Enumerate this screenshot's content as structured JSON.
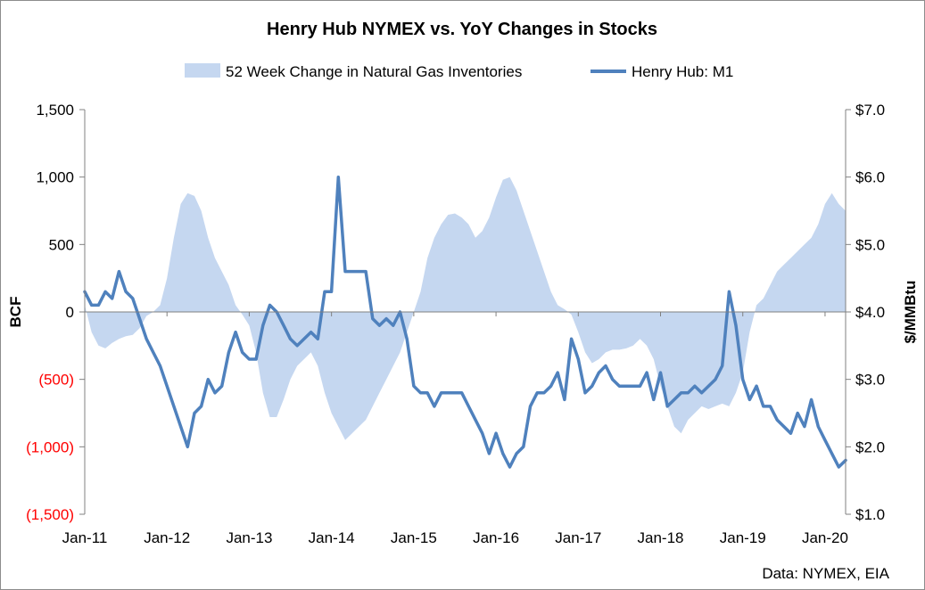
{
  "chart_data": {
    "type": "area+line",
    "title": "Henry Hub NYMEX vs. YoY Changes in Stocks",
    "source_note": "Data: NYMEX, EIA",
    "legend_position": "top",
    "grid": false,
    "colors": {
      "area": "#c5d7f0",
      "line": "#4f81bd",
      "negative_tick_label": "#ff0000"
    },
    "y_left": {
      "label": "BCF",
      "lim": [
        -1500,
        1500
      ],
      "ticks": [
        1500,
        1000,
        500,
        0,
        -500,
        -1000,
        -1500
      ],
      "tick_labels": [
        "1,500",
        "1,000",
        "500",
        "0",
        "(500)",
        "(1,000)",
        "(1,500)"
      ]
    },
    "y_right": {
      "label": "$/MMBtu",
      "lim": [
        1.0,
        7.0
      ],
      "ticks": [
        7,
        6,
        5,
        4,
        3,
        2,
        1
      ],
      "tick_labels": [
        "$7.0",
        "$6.0",
        "$5.0",
        "$4.0",
        "$3.0",
        "$2.0",
        "$1.0"
      ]
    },
    "x_axis": {
      "lim": [
        "2011-01",
        "2020-04"
      ],
      "ticks": [
        "2011-01",
        "2012-01",
        "2013-01",
        "2014-01",
        "2015-01",
        "2016-01",
        "2017-01",
        "2018-01",
        "2019-01",
        "2020-01"
      ],
      "tick_labels": [
        "Jan-11",
        "Jan-12",
        "Jan-13",
        "Jan-14",
        "Jan-15",
        "Jan-16",
        "Jan-17",
        "Jan-18",
        "Jan-19",
        "Jan-20"
      ]
    },
    "series": [
      {
        "name": "52 Week Change in Natural Gas Inventories",
        "type": "area",
        "axis": "left",
        "points": [
          [
            "2011-01",
            50
          ],
          [
            "2011-02",
            -150
          ],
          [
            "2011-03",
            -250
          ],
          [
            "2011-04",
            -270
          ],
          [
            "2011-05",
            -230
          ],
          [
            "2011-06",
            -200
          ],
          [
            "2011-07",
            -180
          ],
          [
            "2011-08",
            -170
          ],
          [
            "2011-09",
            -120
          ],
          [
            "2011-10",
            -30
          ],
          [
            "2011-11",
            0
          ],
          [
            "2011-12",
            50
          ],
          [
            "2012-01",
            250
          ],
          [
            "2012-02",
            550
          ],
          [
            "2012-03",
            800
          ],
          [
            "2012-04",
            880
          ],
          [
            "2012-05",
            860
          ],
          [
            "2012-06",
            750
          ],
          [
            "2012-07",
            550
          ],
          [
            "2012-08",
            400
          ],
          [
            "2012-09",
            300
          ],
          [
            "2012-10",
            200
          ],
          [
            "2012-11",
            50
          ],
          [
            "2012-12",
            -20
          ],
          [
            "2013-01",
            -100
          ],
          [
            "2013-02",
            -300
          ],
          [
            "2013-03",
            -600
          ],
          [
            "2013-04",
            -780
          ],
          [
            "2013-05",
            -780
          ],
          [
            "2013-06",
            -650
          ],
          [
            "2013-07",
            -500
          ],
          [
            "2013-08",
            -400
          ],
          [
            "2013-09",
            -350
          ],
          [
            "2013-10",
            -300
          ],
          [
            "2013-11",
            -400
          ],
          [
            "2013-12",
            -600
          ],
          [
            "2014-01",
            -750
          ],
          [
            "2014-02",
            -850
          ],
          [
            "2014-03",
            -950
          ],
          [
            "2014-04",
            -900
          ],
          [
            "2014-05",
            -850
          ],
          [
            "2014-06",
            -800
          ],
          [
            "2014-07",
            -700
          ],
          [
            "2014-08",
            -600
          ],
          [
            "2014-09",
            -500
          ],
          [
            "2014-10",
            -400
          ],
          [
            "2014-11",
            -300
          ],
          [
            "2014-12",
            -150
          ],
          [
            "2015-01",
            0
          ],
          [
            "2015-02",
            150
          ],
          [
            "2015-03",
            400
          ],
          [
            "2015-04",
            550
          ],
          [
            "2015-05",
            650
          ],
          [
            "2015-06",
            720
          ],
          [
            "2015-07",
            730
          ],
          [
            "2015-08",
            700
          ],
          [
            "2015-09",
            650
          ],
          [
            "2015-10",
            550
          ],
          [
            "2015-11",
            600
          ],
          [
            "2015-12",
            700
          ],
          [
            "2016-01",
            850
          ],
          [
            "2016-02",
            980
          ],
          [
            "2016-03",
            1000
          ],
          [
            "2016-04",
            900
          ],
          [
            "2016-05",
            750
          ],
          [
            "2016-06",
            600
          ],
          [
            "2016-07",
            450
          ],
          [
            "2016-08",
            300
          ],
          [
            "2016-09",
            150
          ],
          [
            "2016-10",
            50
          ],
          [
            "2016-11",
            20
          ],
          [
            "2016-12",
            -20
          ],
          [
            "2017-01",
            -150
          ],
          [
            "2017-02",
            -300
          ],
          [
            "2017-03",
            -380
          ],
          [
            "2017-04",
            -350
          ],
          [
            "2017-05",
            -300
          ],
          [
            "2017-06",
            -280
          ],
          [
            "2017-07",
            -280
          ],
          [
            "2017-08",
            -270
          ],
          [
            "2017-09",
            -250
          ],
          [
            "2017-10",
            -200
          ],
          [
            "2017-11",
            -250
          ],
          [
            "2017-12",
            -350
          ],
          [
            "2018-01",
            -550
          ],
          [
            "2018-02",
            -700
          ],
          [
            "2018-03",
            -850
          ],
          [
            "2018-04",
            -900
          ],
          [
            "2018-05",
            -800
          ],
          [
            "2018-06",
            -750
          ],
          [
            "2018-07",
            -700
          ],
          [
            "2018-08",
            -720
          ],
          [
            "2018-09",
            -700
          ],
          [
            "2018-10",
            -680
          ],
          [
            "2018-11",
            -700
          ],
          [
            "2018-12",
            -600
          ],
          [
            "2019-01",
            -450
          ],
          [
            "2019-02",
            -150
          ],
          [
            "2019-03",
            50
          ],
          [
            "2019-04",
            100
          ],
          [
            "2019-05",
            200
          ],
          [
            "2019-06",
            300
          ],
          [
            "2019-07",
            350
          ],
          [
            "2019-08",
            400
          ],
          [
            "2019-09",
            450
          ],
          [
            "2019-10",
            500
          ],
          [
            "2019-11",
            550
          ],
          [
            "2019-12",
            650
          ],
          [
            "2020-01",
            800
          ],
          [
            "2020-02",
            880
          ],
          [
            "2020-03",
            800
          ],
          [
            "2020-04",
            750
          ]
        ]
      },
      {
        "name": "Henry Hub: M1",
        "type": "line",
        "axis": "right",
        "points": [
          [
            "2011-01",
            4.3
          ],
          [
            "2011-02",
            4.1
          ],
          [
            "2011-03",
            4.1
          ],
          [
            "2011-04",
            4.3
          ],
          [
            "2011-05",
            4.2
          ],
          [
            "2011-06",
            4.6
          ],
          [
            "2011-07",
            4.3
          ],
          [
            "2011-08",
            4.2
          ],
          [
            "2011-09",
            3.9
          ],
          [
            "2011-10",
            3.6
          ],
          [
            "2011-11",
            3.4
          ],
          [
            "2011-12",
            3.2
          ],
          [
            "2012-01",
            2.9
          ],
          [
            "2012-02",
            2.6
          ],
          [
            "2012-03",
            2.3
          ],
          [
            "2012-04",
            2.0
          ],
          [
            "2012-05",
            2.5
          ],
          [
            "2012-06",
            2.6
          ],
          [
            "2012-07",
            3.0
          ],
          [
            "2012-08",
            2.8
          ],
          [
            "2012-09",
            2.9
          ],
          [
            "2012-10",
            3.4
          ],
          [
            "2012-11",
            3.7
          ],
          [
            "2012-12",
            3.4
          ],
          [
            "2013-01",
            3.3
          ],
          [
            "2013-02",
            3.3
          ],
          [
            "2013-03",
            3.8
          ],
          [
            "2013-04",
            4.1
          ],
          [
            "2013-05",
            4.0
          ],
          [
            "2013-06",
            3.8
          ],
          [
            "2013-07",
            3.6
          ],
          [
            "2013-08",
            3.5
          ],
          [
            "2013-09",
            3.6
          ],
          [
            "2013-10",
            3.7
          ],
          [
            "2013-11",
            3.6
          ],
          [
            "2013-12",
            4.3
          ],
          [
            "2014-01",
            4.3
          ],
          [
            "2014-02",
            6.0
          ],
          [
            "2014-03",
            4.6
          ],
          [
            "2014-04",
            4.6
          ],
          [
            "2014-05",
            4.6
          ],
          [
            "2014-06",
            4.6
          ],
          [
            "2014-07",
            3.9
          ],
          [
            "2014-08",
            3.8
          ],
          [
            "2014-09",
            3.9
          ],
          [
            "2014-10",
            3.8
          ],
          [
            "2014-11",
            4.0
          ],
          [
            "2014-12",
            3.6
          ],
          [
            "2015-01",
            2.9
          ],
          [
            "2015-02",
            2.8
          ],
          [
            "2015-03",
            2.8
          ],
          [
            "2015-04",
            2.6
          ],
          [
            "2015-05",
            2.8
          ],
          [
            "2015-06",
            2.8
          ],
          [
            "2015-07",
            2.8
          ],
          [
            "2015-08",
            2.8
          ],
          [
            "2015-09",
            2.6
          ],
          [
            "2015-10",
            2.4
          ],
          [
            "2015-11",
            2.2
          ],
          [
            "2015-12",
            1.9
          ],
          [
            "2016-01",
            2.2
          ],
          [
            "2016-02",
            1.9
          ],
          [
            "2016-03",
            1.7
          ],
          [
            "2016-04",
            1.9
          ],
          [
            "2016-05",
            2.0
          ],
          [
            "2016-06",
            2.6
          ],
          [
            "2016-07",
            2.8
          ],
          [
            "2016-08",
            2.8
          ],
          [
            "2016-09",
            2.9
          ],
          [
            "2016-10",
            3.1
          ],
          [
            "2016-11",
            2.7
          ],
          [
            "2016-12",
            3.6
          ],
          [
            "2017-01",
            3.3
          ],
          [
            "2017-02",
            2.8
          ],
          [
            "2017-03",
            2.9
          ],
          [
            "2017-04",
            3.1
          ],
          [
            "2017-05",
            3.2
          ],
          [
            "2017-06",
            3.0
          ],
          [
            "2017-07",
            2.9
          ],
          [
            "2017-08",
            2.9
          ],
          [
            "2017-09",
            2.9
          ],
          [
            "2017-10",
            2.9
          ],
          [
            "2017-11",
            3.1
          ],
          [
            "2017-12",
            2.7
          ],
          [
            "2018-01",
            3.1
          ],
          [
            "2018-02",
            2.6
          ],
          [
            "2018-03",
            2.7
          ],
          [
            "2018-04",
            2.8
          ],
          [
            "2018-05",
            2.8
          ],
          [
            "2018-06",
            2.9
          ],
          [
            "2018-07",
            2.8
          ],
          [
            "2018-08",
            2.9
          ],
          [
            "2018-09",
            3.0
          ],
          [
            "2018-10",
            3.2
          ],
          [
            "2018-11",
            4.3
          ],
          [
            "2018-12",
            3.8
          ],
          [
            "2019-01",
            3.0
          ],
          [
            "2019-02",
            2.7
          ],
          [
            "2019-03",
            2.9
          ],
          [
            "2019-04",
            2.6
          ],
          [
            "2019-05",
            2.6
          ],
          [
            "2019-06",
            2.4
          ],
          [
            "2019-07",
            2.3
          ],
          [
            "2019-08",
            2.2
          ],
          [
            "2019-09",
            2.5
          ],
          [
            "2019-10",
            2.3
          ],
          [
            "2019-11",
            2.7
          ],
          [
            "2019-12",
            2.3
          ],
          [
            "2020-01",
            2.1
          ],
          [
            "2020-02",
            1.9
          ],
          [
            "2020-03",
            1.7
          ],
          [
            "2020-04",
            1.8
          ]
        ]
      }
    ]
  }
}
